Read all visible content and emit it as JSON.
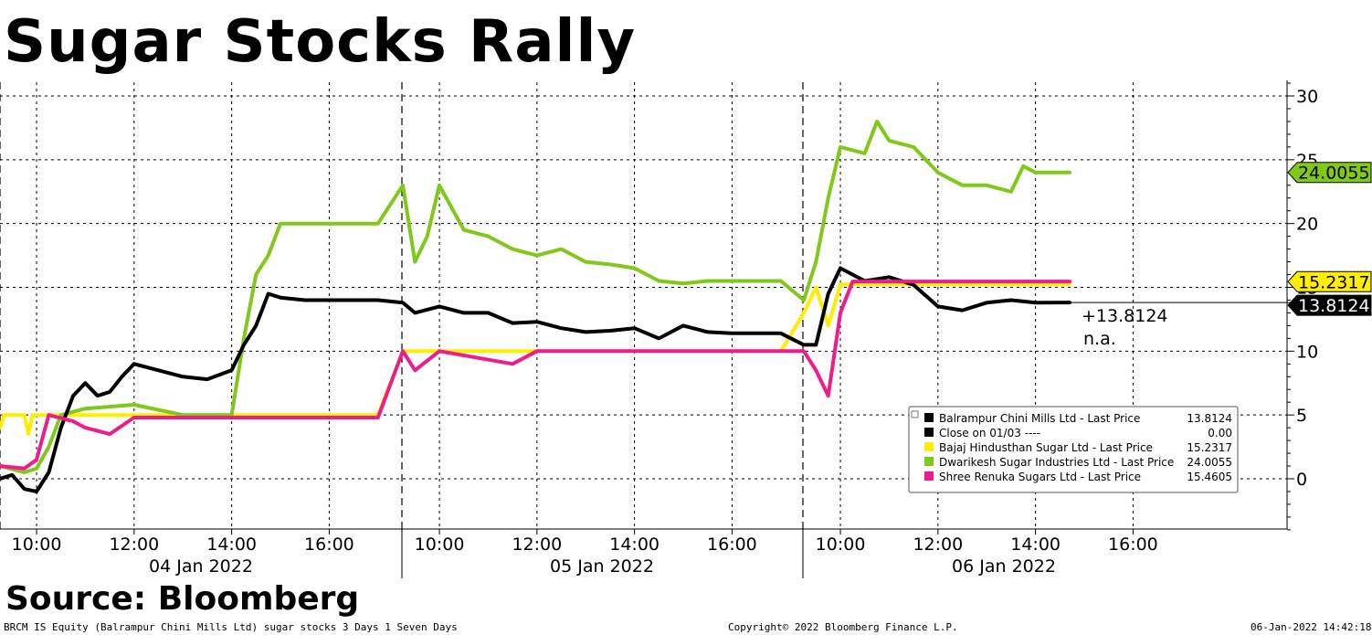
{
  "title": "Sugar Stocks Rally",
  "source": "Source: Bloomberg",
  "footer": {
    "left": "BRCM IS Equity (Balrampur Chini Mills Ltd) sugar stocks 3 Days 1 Seven Days",
    "center": "Copyright© 2022 Bloomberg Finance L.P.",
    "right": "06-Jan-2022 14:42:18"
  },
  "chart_data": {
    "type": "line",
    "title": "Sugar Stocks Rally",
    "xlabel": "",
    "ylabel": "",
    "ylim": [
      -4,
      31
    ],
    "yticks": [
      0,
      5,
      10,
      15,
      20,
      25,
      30
    ],
    "grid": true,
    "legend_position": "bottom-right",
    "days": [
      "04 Jan 2022",
      "05 Jan 2022",
      "06 Jan 2022"
    ],
    "x_tick_labels": [
      "10:00",
      "12:00",
      "14:00",
      "16:00"
    ],
    "annotations": [
      "+13.8124",
      "n.a."
    ],
    "series": [
      {
        "name": "Balrampur Chini Mills Ltd - Last Price",
        "last_value": "13.8124",
        "color": "#000000",
        "points": [
          [
            "04 Jan 2022 09:15",
            0.0
          ],
          [
            "04 Jan 2022 09:30",
            0.3
          ],
          [
            "04 Jan 2022 09:45",
            -0.8
          ],
          [
            "04 Jan 2022 10:00",
            -1.0
          ],
          [
            "04 Jan 2022 10:15",
            0.5
          ],
          [
            "04 Jan 2022 10:30",
            4.0
          ],
          [
            "04 Jan 2022 10:45",
            6.5
          ],
          [
            "04 Jan 2022 11:00",
            7.5
          ],
          [
            "04 Jan 2022 11:15",
            6.5
          ],
          [
            "04 Jan 2022 11:30",
            6.8
          ],
          [
            "04 Jan 2022 11:45",
            8.0
          ],
          [
            "04 Jan 2022 12:00",
            9.0
          ],
          [
            "04 Jan 2022 12:30",
            8.5
          ],
          [
            "04 Jan 2022 13:00",
            8.0
          ],
          [
            "04 Jan 2022 13:30",
            7.8
          ],
          [
            "04 Jan 2022 14:00",
            8.5
          ],
          [
            "04 Jan 2022 14:15",
            10.5
          ],
          [
            "04 Jan 2022 14:30",
            12.0
          ],
          [
            "04 Jan 2022 14:45",
            14.5
          ],
          [
            "04 Jan 2022 15:00",
            14.2
          ],
          [
            "04 Jan 2022 15:30",
            14.0
          ],
          [
            "04 Jan 2022 17:00",
            14.0
          ],
          [
            "05 Jan 2022 09:15",
            13.8
          ],
          [
            "05 Jan 2022 09:30",
            13.0
          ],
          [
            "05 Jan 2022 10:00",
            13.5
          ],
          [
            "05 Jan 2022 10:30",
            13.0
          ],
          [
            "05 Jan 2022 11:00",
            13.0
          ],
          [
            "05 Jan 2022 11:30",
            12.2
          ],
          [
            "05 Jan 2022 12:00",
            12.3
          ],
          [
            "05 Jan 2022 12:30",
            11.8
          ],
          [
            "05 Jan 2022 13:00",
            11.5
          ],
          [
            "05 Jan 2022 13:30",
            11.6
          ],
          [
            "05 Jan 2022 14:00",
            11.8
          ],
          [
            "05 Jan 2022 14:30",
            11.0
          ],
          [
            "05 Jan 2022 15:00",
            12.0
          ],
          [
            "05 Jan 2022 15:30",
            11.5
          ],
          [
            "05 Jan 2022 16:00",
            11.4
          ],
          [
            "05 Jan 2022 17:00",
            11.4
          ],
          [
            "06 Jan 2022 09:15",
            10.5
          ],
          [
            "06 Jan 2022 09:30",
            10.5
          ],
          [
            "06 Jan 2022 09:45",
            14.5
          ],
          [
            "06 Jan 2022 10:00",
            16.5
          ],
          [
            "06 Jan 2022 10:30",
            15.5
          ],
          [
            "06 Jan 2022 11:00",
            15.8
          ],
          [
            "06 Jan 2022 11:30",
            15.2
          ],
          [
            "06 Jan 2022 12:00",
            13.5
          ],
          [
            "06 Jan 2022 12:30",
            13.2
          ],
          [
            "06 Jan 2022 13:00",
            13.8
          ],
          [
            "06 Jan 2022 13:30",
            14.0
          ],
          [
            "06 Jan 2022 14:00",
            13.8
          ],
          [
            "06 Jan 2022 14:42",
            13.8124
          ]
        ]
      },
      {
        "name": "Close on 01/03 ----",
        "last_value": "0.00",
        "color": "#000000",
        "points": []
      },
      {
        "name": "Bajaj Hindusthan Sugar Ltd - Last Price",
        "last_value": "15.2317",
        "color": "#ffee00",
        "points": [
          [
            "04 Jan 2022 09:15",
            4.0
          ],
          [
            "04 Jan 2022 09:20",
            5.0
          ],
          [
            "04 Jan 2022 09:45",
            5.0
          ],
          [
            "04 Jan 2022 09:50",
            3.5
          ],
          [
            "04 Jan 2022 09:55",
            5.0
          ],
          [
            "04 Jan 2022 17:00",
            5.0
          ],
          [
            "05 Jan 2022 09:15",
            10.0
          ],
          [
            "05 Jan 2022 12:00",
            10.0
          ],
          [
            "05 Jan 2022 17:00",
            10.0
          ],
          [
            "06 Jan 2022 09:15",
            13.0
          ],
          [
            "06 Jan 2022 09:30",
            15.0
          ],
          [
            "06 Jan 2022 09:45",
            12.0
          ],
          [
            "06 Jan 2022 10:00",
            15.2317
          ],
          [
            "06 Jan 2022 14:42",
            15.2317
          ]
        ]
      },
      {
        "name": "Dwarikesh Sugar Industries Ltd - Last Price",
        "last_value": "24.0055",
        "color": "#80c81a",
        "points": [
          [
            "04 Jan 2022 09:15",
            1.0
          ],
          [
            "04 Jan 2022 09:45",
            0.5
          ],
          [
            "04 Jan 2022 10:00",
            0.8
          ],
          [
            "04 Jan 2022 10:15",
            2.5
          ],
          [
            "04 Jan 2022 10:30",
            5.0
          ],
          [
            "04 Jan 2022 11:00",
            5.5
          ],
          [
            "04 Jan 2022 12:00",
            5.8
          ],
          [
            "04 Jan 2022 13:00",
            5.0
          ],
          [
            "04 Jan 2022 14:00",
            5.0
          ],
          [
            "04 Jan 2022 14:15",
            11.0
          ],
          [
            "04 Jan 2022 14:30",
            16.0
          ],
          [
            "04 Jan 2022 14:45",
            17.5
          ],
          [
            "04 Jan 2022 15:00",
            20.0
          ],
          [
            "04 Jan 2022 17:00",
            20.0
          ],
          [
            "05 Jan 2022 09:15",
            23.0
          ],
          [
            "05 Jan 2022 09:30",
            17.0
          ],
          [
            "05 Jan 2022 09:45",
            19.0
          ],
          [
            "05 Jan 2022 10:00",
            23.0
          ],
          [
            "05 Jan 2022 10:30",
            19.5
          ],
          [
            "05 Jan 2022 11:00",
            19.0
          ],
          [
            "05 Jan 2022 11:30",
            18.0
          ],
          [
            "05 Jan 2022 12:00",
            17.5
          ],
          [
            "05 Jan 2022 12:30",
            18.0
          ],
          [
            "05 Jan 2022 13:00",
            17.0
          ],
          [
            "05 Jan 2022 13:30",
            16.8
          ],
          [
            "05 Jan 2022 14:00",
            16.5
          ],
          [
            "05 Jan 2022 14:30",
            15.5
          ],
          [
            "05 Jan 2022 15:00",
            15.3
          ],
          [
            "05 Jan 2022 15:30",
            15.5
          ],
          [
            "05 Jan 2022 16:00",
            15.5
          ],
          [
            "05 Jan 2022 17:00",
            15.5
          ],
          [
            "06 Jan 2022 09:15",
            14.0
          ],
          [
            "06 Jan 2022 09:30",
            17.0
          ],
          [
            "06 Jan 2022 09:45",
            22.0
          ],
          [
            "06 Jan 2022 10:00",
            26.0
          ],
          [
            "06 Jan 2022 10:30",
            25.5
          ],
          [
            "06 Jan 2022 10:45",
            28.0
          ],
          [
            "06 Jan 2022 11:00",
            26.5
          ],
          [
            "06 Jan 2022 11:30",
            26.0
          ],
          [
            "06 Jan 2022 12:00",
            24.0
          ],
          [
            "06 Jan 2022 12:30",
            23.0
          ],
          [
            "06 Jan 2022 13:00",
            23.0
          ],
          [
            "06 Jan 2022 13:30",
            22.5
          ],
          [
            "06 Jan 2022 13:45",
            24.5
          ],
          [
            "06 Jan 2022 14:00",
            24.0
          ],
          [
            "06 Jan 2022 14:42",
            24.0055
          ]
        ]
      },
      {
        "name": "Shree Renuka Sugars Ltd - Last Price",
        "last_value": "15.4605",
        "color": "#ee1c8c",
        "points": [
          [
            "04 Jan 2022 09:15",
            1.0
          ],
          [
            "04 Jan 2022 09:45",
            0.8
          ],
          [
            "04 Jan 2022 10:00",
            1.5
          ],
          [
            "04 Jan 2022 10:15",
            5.0
          ],
          [
            "04 Jan 2022 10:45",
            4.5
          ],
          [
            "04 Jan 2022 11:00",
            4.0
          ],
          [
            "04 Jan 2022 11:30",
            3.5
          ],
          [
            "04 Jan 2022 12:00",
            4.8
          ],
          [
            "04 Jan 2022 17:00",
            4.8
          ],
          [
            "05 Jan 2022 09:15",
            10.0
          ],
          [
            "05 Jan 2022 09:30",
            8.5
          ],
          [
            "05 Jan 2022 10:00",
            10.0
          ],
          [
            "05 Jan 2022 10:45",
            9.5
          ],
          [
            "05 Jan 2022 11:30",
            9.0
          ],
          [
            "05 Jan 2022 12:00",
            10.0
          ],
          [
            "05 Jan 2022 17:00",
            10.0
          ],
          [
            "06 Jan 2022 09:15",
            10.0
          ],
          [
            "06 Jan 2022 09:30",
            8.5
          ],
          [
            "06 Jan 2022 09:45",
            6.5
          ],
          [
            "06 Jan 2022 10:00",
            13.0
          ],
          [
            "06 Jan 2022 10:15",
            15.4605
          ],
          [
            "06 Jan 2022 14:42",
            15.4605
          ]
        ]
      }
    ],
    "value_tags": [
      {
        "value": "24.0055",
        "y": 24.0055,
        "bg": "#80c81a",
        "fg": "#000000"
      },
      {
        "value": "15.2317",
        "y": 15.2317,
        "bg": "#ffee00",
        "fg": "#000000"
      },
      {
        "value": "13.8124",
        "y": 13.8124,
        "bg": "#000000",
        "fg": "#ffffff"
      }
    ]
  }
}
